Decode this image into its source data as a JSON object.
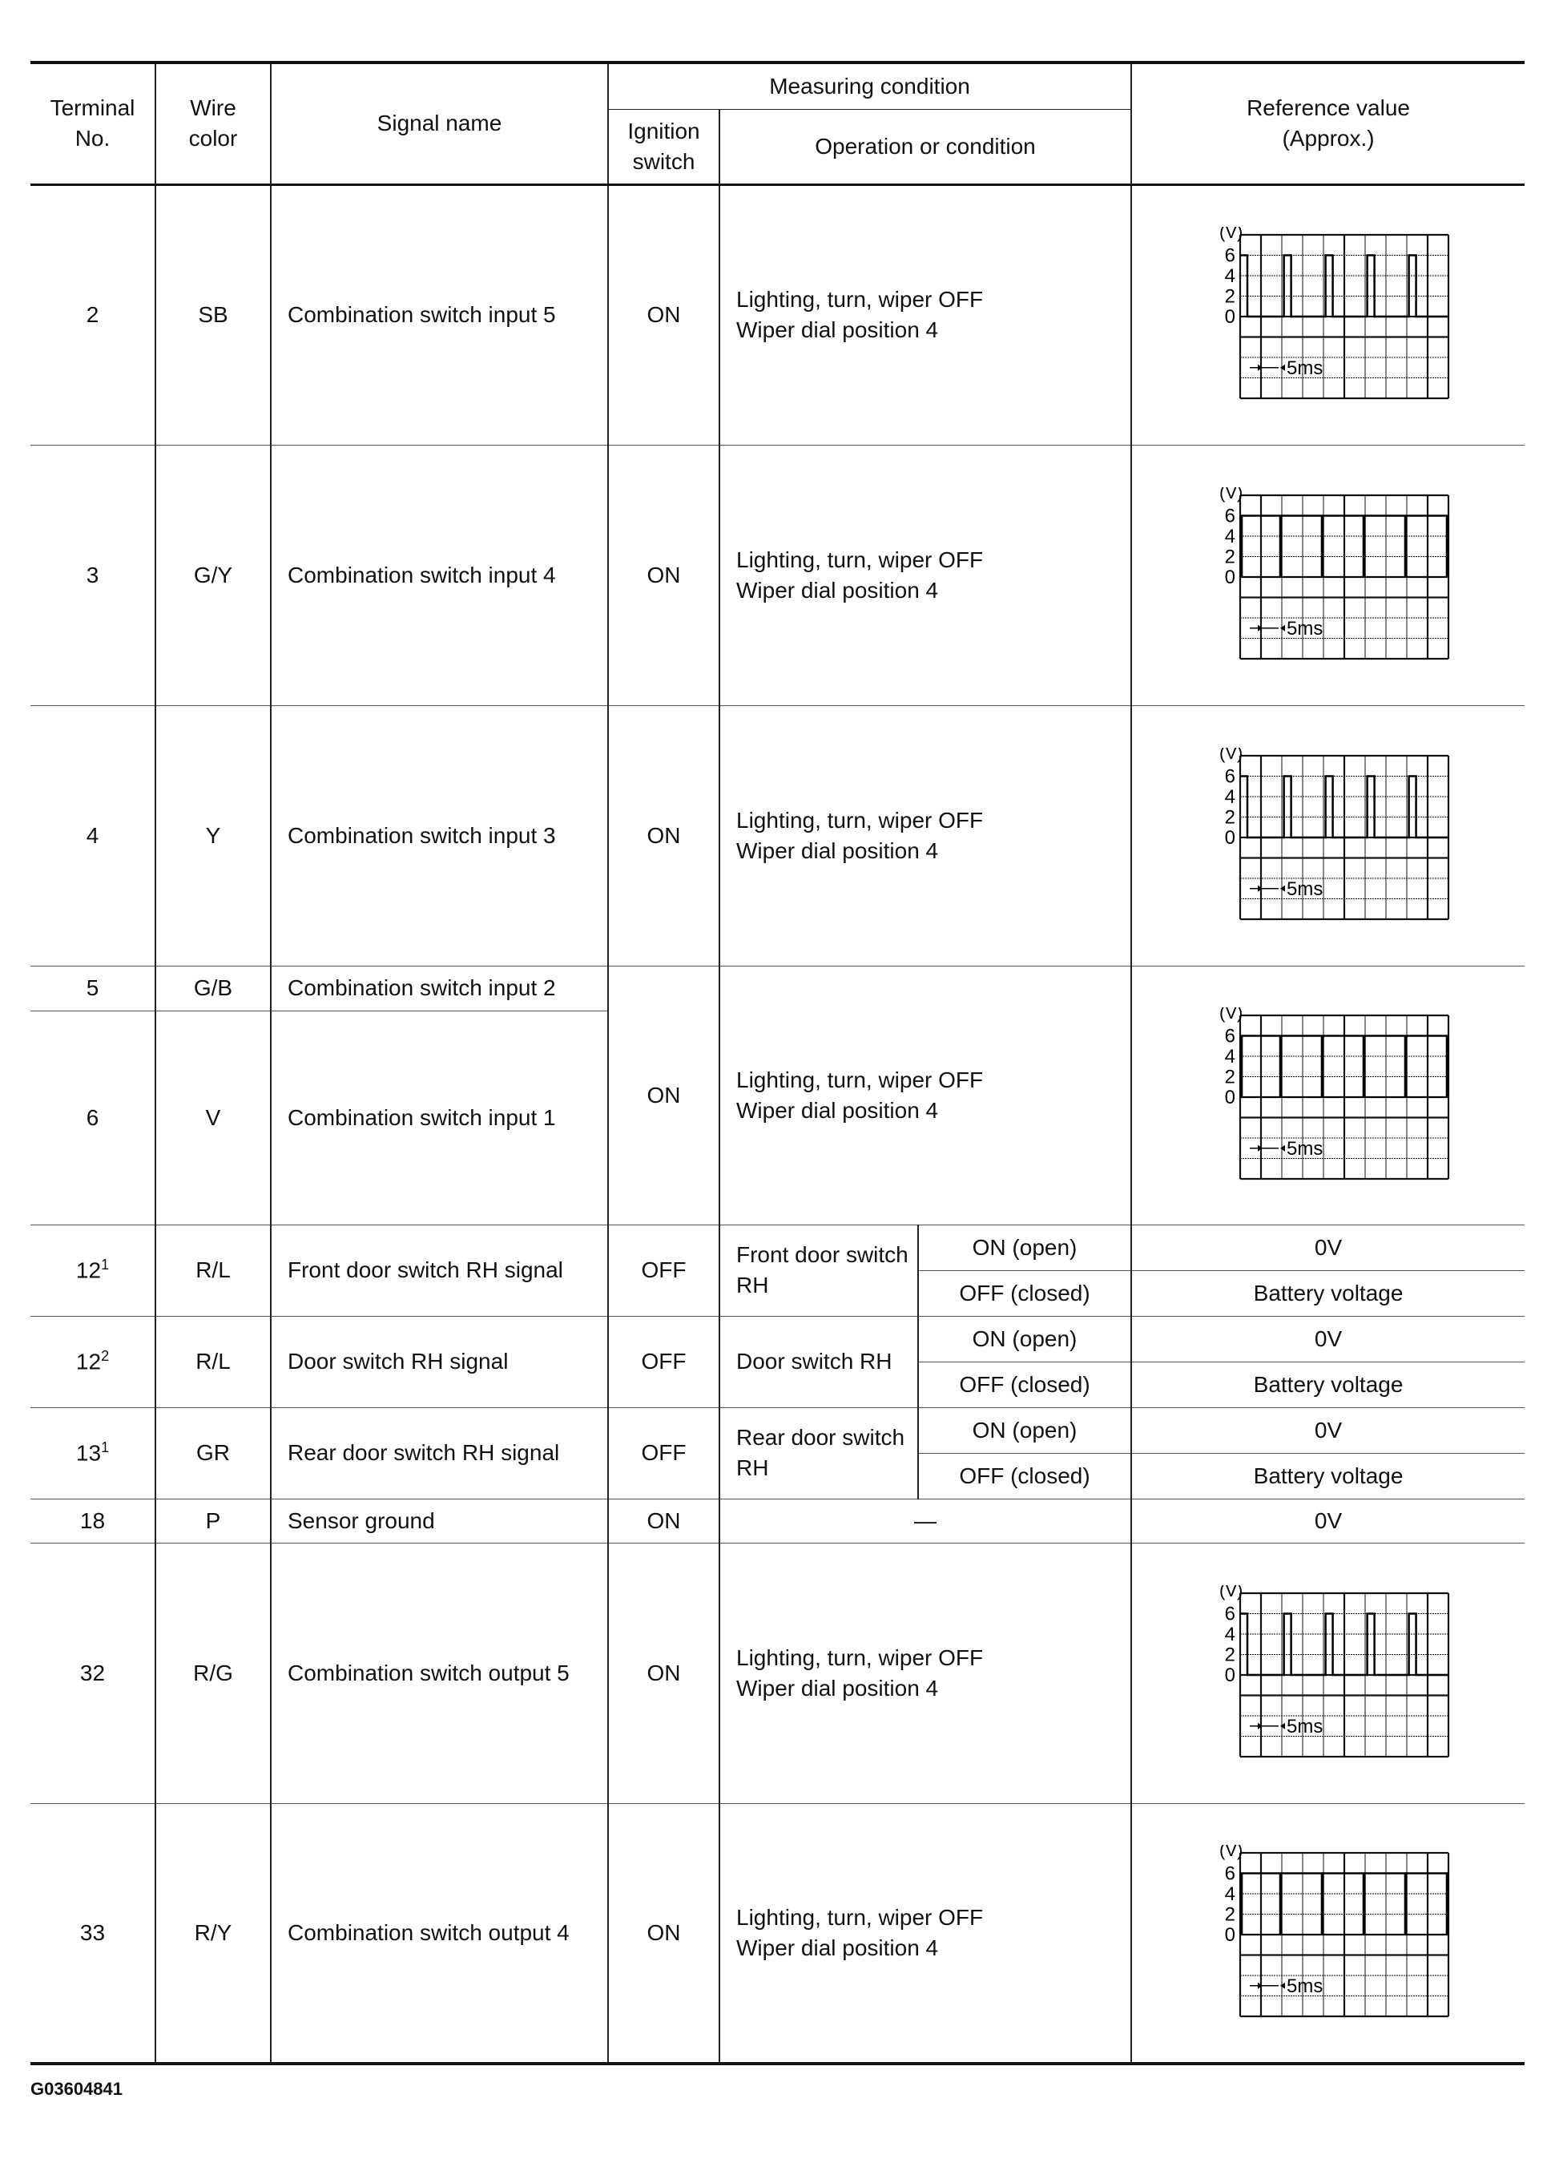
{
  "header": {
    "terminal_no": "Terminal No.",
    "wire_color": "Wire color",
    "signal_name": "Signal name",
    "measuring_condition": "Measuring condition",
    "ignition_switch": "Ignition switch",
    "operation_or_condition": "Operation or condition",
    "reference_value": "Reference value (Approx.)"
  },
  "waveform_common": {
    "unit": "(V)",
    "ticks": [
      "6",
      "4",
      "2",
      "0"
    ],
    "timebase": "5ms"
  },
  "rows": [
    {
      "terminal": "2",
      "wire": "SB",
      "signal": "Combination switch input 5",
      "ignition": "ON",
      "condition": [
        "Lighting, turn, wiper OFF",
        "Wiper dial position 4"
      ],
      "waveform": "narrow-pulse"
    },
    {
      "terminal": "3",
      "wire": "G/Y",
      "signal": "Combination switch input 4",
      "ignition": "ON",
      "condition": [
        "Lighting, turn, wiper OFF",
        "Wiper dial position 4"
      ],
      "waveform": "spike"
    },
    {
      "terminal": "4",
      "wire": "Y",
      "signal": "Combination switch input 3",
      "ignition": "ON",
      "condition": [
        "Lighting, turn, wiper OFF",
        "Wiper dial position 4"
      ],
      "waveform": "narrow-pulse"
    },
    {
      "terminal": "5",
      "wire": "G/B",
      "signal": "Combination switch input 2"
    },
    {
      "terminal": "6",
      "wire": "V",
      "signal": "Combination switch input 1",
      "ignition": "ON",
      "condition": [
        "Lighting, turn, wiper OFF",
        "Wiper dial position 4"
      ],
      "waveform": "spike"
    },
    {
      "terminal": "12",
      "sup": "1",
      "wire": "R/L",
      "signal": "Front door switch RH signal",
      "ignition": "OFF",
      "condition": "Front door switch RH",
      "states": [
        {
          "state": "ON (open)",
          "value": "0V"
        },
        {
          "state": "OFF (closed)",
          "value": "Battery voltage"
        }
      ]
    },
    {
      "terminal": "12",
      "sup": "2",
      "wire": "R/L",
      "signal": "Door switch RH signal",
      "ignition": "OFF",
      "condition": "Door switch RH",
      "states": [
        {
          "state": "ON (open)",
          "value": "0V"
        },
        {
          "state": "OFF (closed)",
          "value": "Battery voltage"
        }
      ]
    },
    {
      "terminal": "13",
      "sup": "1",
      "wire": "GR",
      "signal": "Rear door switch RH signal",
      "ignition": "OFF",
      "condition": "Rear door switch RH",
      "states": [
        {
          "state": "ON (open)",
          "value": "0V"
        },
        {
          "state": "OFF (closed)",
          "value": "Battery voltage"
        }
      ]
    },
    {
      "terminal": "18",
      "wire": "P",
      "signal": "Sensor ground",
      "ignition": "ON",
      "condition": "—",
      "value": "0V"
    },
    {
      "terminal": "32",
      "wire": "R/G",
      "signal": "Combination switch output 5",
      "ignition": "ON",
      "condition": [
        "Lighting, turn, wiper OFF",
        "Wiper dial position 4"
      ],
      "waveform": "narrow-pulse"
    },
    {
      "terminal": "33",
      "wire": "R/Y",
      "signal": "Combination switch output 4",
      "ignition": "ON",
      "condition": [
        "Lighting, turn, wiper OFF",
        "Wiper dial position 4"
      ],
      "waveform": "spike"
    }
  ],
  "footer": {
    "figure_id": "G03604841"
  }
}
